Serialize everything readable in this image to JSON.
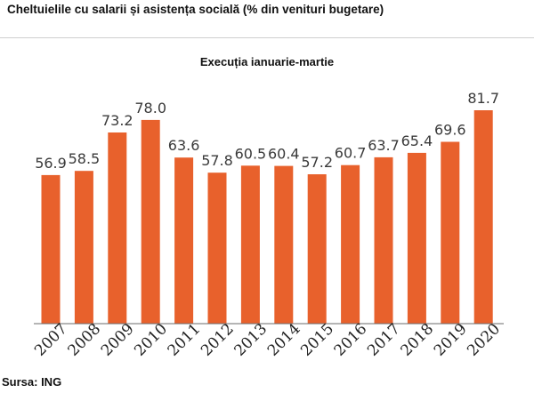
{
  "header": {
    "title": "Cheltuielile cu salarii și asistența socială (% din venituri bugetare)",
    "subtitle": "Execuția ianuarie-martie"
  },
  "footer": {
    "source": "Sursa: ING"
  },
  "colors": {
    "bar": "#e8612c",
    "axis": "#6b6b6b"
  },
  "chart_data": {
    "type": "bar",
    "title": "Cheltuielile cu salarii și asistența socială (% din venituri bugetare)",
    "subtitle": "Execuția ianuarie-martie",
    "xlabel": "",
    "ylabel": "",
    "categories": [
      "2007",
      "2008",
      "2009",
      "2010",
      "2011",
      "2012",
      "2013",
      "2014",
      "2015",
      "2016",
      "2017",
      "2018",
      "2019",
      "2020"
    ],
    "values": [
      56.9,
      58.5,
      73.2,
      78.0,
      63.6,
      57.8,
      60.5,
      60.4,
      57.2,
      60.7,
      63.7,
      65.4,
      69.6,
      81.7
    ],
    "value_labels": [
      "56.9",
      "58.5",
      "73.2",
      "78.0",
      "63.6",
      "57.8",
      "60.5",
      "60.4",
      "57.2",
      "60.7",
      "63.7",
      "65.4",
      "69.6",
      "81.7"
    ],
    "ylim": [
      0,
      81.7
    ],
    "grid": false,
    "legend": "none"
  }
}
